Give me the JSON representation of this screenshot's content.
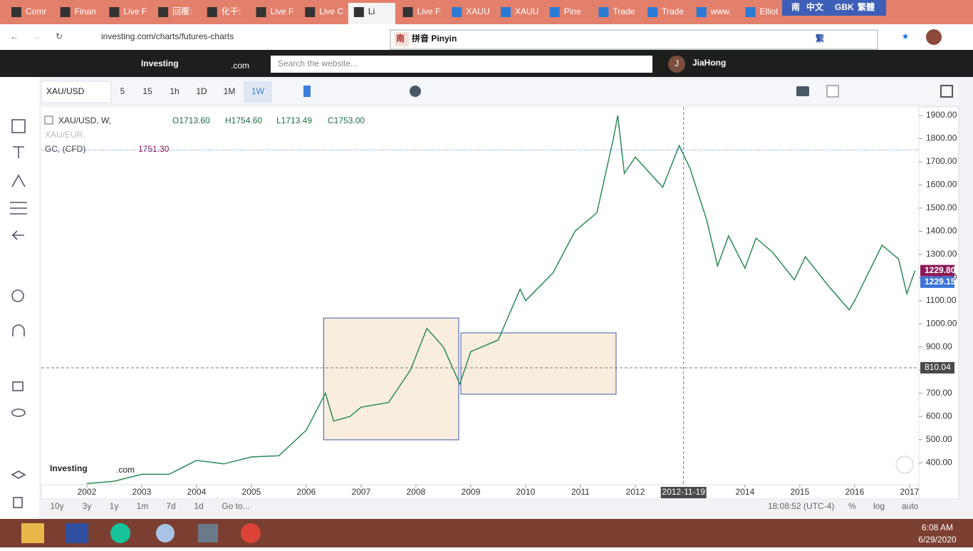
{
  "browser": {
    "tabs": [
      "Comr",
      "Finan",
      "Live F",
      "回覆:",
      "化干:",
      "Live F",
      "Live C",
      "Li",
      "Live F",
      "XAUU",
      "XAUU",
      "Pine",
      "Trade",
      "Trade",
      "www.",
      "Elliot"
    ],
    "url": "investing.com/charts/futures-charts"
  },
  "ime": {
    "icon": "南",
    "lang": "中文",
    "encoding": "GBK",
    "script": "繁體",
    "mode": "拼音 Pinyin",
    "trad": "繁"
  },
  "site": {
    "logo": "Investing",
    "logo_suffix": ".com",
    "search_placeholder": "Search the website...",
    "avatar": "J",
    "user": "JiaHong"
  },
  "toolbar": {
    "symbol": "XAU/USD",
    "intervals": [
      "5",
      "15",
      "1h",
      "1D",
      "1M",
      "1W"
    ]
  },
  "legend": {
    "symbol": "XAU/USD, W,",
    "open": "O1713.60",
    "high": "H1754.60",
    "low": "L1713.49",
    "close": "C1753.00",
    "compare": [
      "XAU/EUR,",
      "GC, (CFD)"
    ]
  },
  "bottom_bar": {
    "ranges": [
      "10y",
      "3y",
      "1y",
      "1m",
      "7d",
      "1d",
      "Go to..."
    ],
    "time": "18:08:52 (UTC-4)",
    "percent": "%",
    "log": "log",
    "auto": "auto"
  },
  "taskbar": {
    "time": "6:08 AM",
    "date": "6/29/2020"
  },
  "chart_data": {
    "type": "line",
    "color": "#2b8a55",
    "x": [
      2002.0,
      2002.5,
      2003.0,
      2003.5,
      2004.0,
      2004.5,
      2005.0,
      2005.5,
      2006.0,
      2006.35,
      2006.5,
      2006.8,
      2007.0,
      2007.5,
      2007.9,
      2008.2,
      2008.5,
      2008.8,
      2009.0,
      2009.5,
      2009.9,
      2010.0,
      2010.5,
      2010.9,
      2011.3,
      2011.6,
      2011.68,
      2011.8,
      2012.0,
      2012.5,
      2012.8,
      2013.0,
      2013.3,
      2013.5,
      2013.7,
      2014.0,
      2014.2,
      2014.5,
      2014.9,
      2015.1,
      2015.5,
      2015.9,
      2016.0,
      2016.5,
      2016.8,
      2016.95,
      2017.1
    ],
    "values": [
      310,
      320,
      350,
      350,
      410,
      395,
      425,
      430,
      540,
      700,
      580,
      600,
      640,
      660,
      800,
      980,
      900,
      740,
      880,
      930,
      1150,
      1100,
      1220,
      1400,
      1480,
      1800,
      1900,
      1650,
      1720,
      1590,
      1770,
      1670,
      1450,
      1250,
      1380,
      1240,
      1370,
      1310,
      1190,
      1290,
      1170,
      1060,
      1100,
      1340,
      1280,
      1130,
      1230
    ],
    "xlim": [
      2001.17,
      2017.17
    ],
    "xticks": [
      2002,
      2003,
      2004,
      2005,
      2006,
      2007,
      2008,
      2009,
      2010,
      2011,
      2012,
      2014,
      2015,
      2016,
      2017
    ],
    "ylim": [
      305,
      1937
    ],
    "yticks": [
      {
        "value": 400,
        "label": "400.00"
      },
      {
        "value": 500,
        "label": "500.00"
      },
      {
        "value": 600,
        "label": "600.00"
      },
      {
        "value": 700,
        "label": "700.00"
      },
      {
        "value": 800,
        "label": "800.00"
      },
      {
        "value": 900,
        "label": "900.00"
      },
      {
        "value": 1000,
        "label": "1000.00"
      },
      {
        "value": 1100,
        "label": "1100.00"
      },
      {
        "value": 1200,
        "label": "1200.00"
      },
      {
        "value": 1300,
        "label": "1300.00"
      },
      {
        "value": 1400,
        "label": "1400.00"
      },
      {
        "value": 1500,
        "label": "1500.00"
      },
      {
        "value": 1600,
        "label": "1600.00"
      },
      {
        "value": 1700,
        "label": "1700.00"
      },
      {
        "value": 1800,
        "label": "1800.00"
      },
      {
        "value": 1900,
        "label": "1900.00"
      }
    ],
    "hlines": [
      {
        "value": 1751.3,
        "label": "1751.30",
        "color": "#3a7bd5"
      }
    ],
    "price_labels": [
      {
        "value": 1229.8,
        "label": "1229.80",
        "color": "#8b1a5a"
      },
      {
        "value": 1229.15,
        "label": "1229.15",
        "color": "#3b73d9"
      }
    ],
    "crosshair": {
      "x": {
        "value": 2012.88,
        "label": "2012-11-19"
      },
      "y": 810.04
    },
    "rectangles": [
      {
        "x": [
          2006.32,
          2008.78
        ],
        "y": [
          499,
          1025
        ]
      },
      {
        "x": [
          2008.82,
          2011.65
        ],
        "y": [
          696,
          961
        ]
      }
    ]
  }
}
